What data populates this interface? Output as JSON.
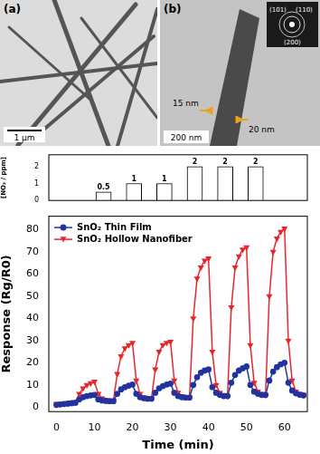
{
  "panels": [
    {
      "label": "(a)",
      "scale_bar": "1 μm"
    },
    {
      "label": "(b)",
      "scale_bar": "200 nm",
      "annotations": [
        "15 nm",
        "20 nm"
      ],
      "diffraction_labels": [
        "(101)",
        "(110)",
        "(200)"
      ]
    }
  ],
  "chart_data": [
    {
      "type": "bar",
      "ylabel": "[NO₂ / ppm]",
      "x": [
        7.5,
        17.5,
        27.5,
        37.5,
        47.5,
        57.5
      ],
      "values": [
        0.5,
        1,
        1,
        2,
        2,
        2
      ],
      "color": "#ffffff",
      "data_labels": true,
      "tick_labels": "y",
      "grid": false,
      "xlim": [
        -2,
        66
      ],
      "ylim": [
        0,
        2.7
      ],
      "yticks": [
        0,
        1,
        2
      ]
    },
    {
      "type": "line",
      "xlabel": "Time (min)",
      "ylabel": "Response (Rg/R0)",
      "x": [
        0,
        1,
        2,
        3,
        4,
        5,
        6,
        7,
        8,
        9,
        10,
        11,
        12,
        13,
        14,
        15,
        16,
        17,
        18,
        19,
        20,
        21,
        22,
        23,
        24,
        25,
        26,
        27,
        28,
        29,
        30,
        31,
        32,
        33,
        34,
        35,
        36,
        37,
        38,
        39,
        40,
        41,
        42,
        43,
        44,
        45,
        46,
        47,
        48,
        49,
        50,
        51,
        52,
        53,
        54,
        55,
        56,
        57,
        58,
        59,
        60,
        61,
        62,
        63,
        64,
        65
      ],
      "series": [
        {
          "name": "SnO₂ Thin Film",
          "color": "#2233a0",
          "marker": "circle",
          "values": [
            1,
            1.2,
            1.4,
            1.6,
            1.8,
            2,
            3.5,
            4.5,
            5,
            5.3,
            5.5,
            3.5,
            3,
            2.8,
            2.7,
            2.7,
            6,
            8,
            9,
            9.7,
            10.2,
            6,
            4.5,
            4,
            3.8,
            3.8,
            6.5,
            8.5,
            9.5,
            10.2,
            10.6,
            6.5,
            5,
            4.5,
            4.3,
            4.3,
            10,
            13.5,
            15.5,
            16.5,
            17,
            9,
            6.5,
            5.5,
            5,
            5,
            11,
            14.5,
            16.5,
            17.5,
            18.3,
            10,
            7,
            6,
            5.5,
            5.5,
            12,
            16,
            18,
            19.3,
            20,
            11,
            7.5,
            6.2,
            5.6,
            5.3
          ]
        },
        {
          "name": "SnO₂ Hollow Nanofiber",
          "color": "#e8262a",
          "marker": "triangle_down",
          "values": [
            1.5,
            1.5,
            1.6,
            1.8,
            2,
            2.2,
            6,
            8.5,
            10,
            10.8,
            11.5,
            6,
            4,
            3.2,
            3,
            3,
            15,
            23,
            26.5,
            28,
            29,
            12,
            6,
            4.5,
            4,
            4,
            17,
            25,
            28,
            29,
            29.5,
            12,
            6.5,
            5,
            4.5,
            4.5,
            40,
            58,
            63,
            66,
            67,
            25,
            10,
            6.5,
            5.5,
            5,
            45,
            63,
            68,
            71,
            72,
            28,
            11,
            7,
            6,
            5.5,
            50,
            70,
            76,
            79,
            80.5,
            30,
            12,
            7,
            6,
            5.5
          ]
        }
      ],
      "legend": "upper left",
      "grid": false,
      "xlim": [
        -2,
        66
      ],
      "xticks": [
        0,
        10,
        20,
        30,
        40,
        50,
        60
      ],
      "ylim": [
        -2,
        86
      ],
      "yticks": [
        0,
        10,
        20,
        30,
        40,
        50,
        60,
        70,
        80
      ]
    }
  ]
}
